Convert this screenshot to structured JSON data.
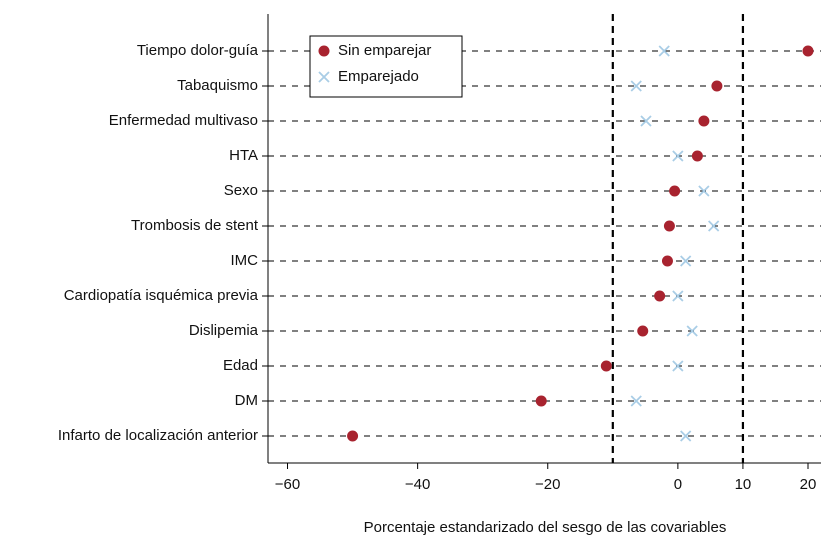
{
  "chart_data": {
    "type": "dot",
    "x_label": "Porcentaje estandarizado del sesgo de las covariables",
    "categories": [
      "Tiempo dolor-guía",
      "Tabaquismo",
      "Enfermedad multivaso",
      "HTA",
      "Sexo",
      "Trombosis de stent",
      "IMC",
      "Cardiopatía isquémica previa",
      "Dislipemia",
      "Edad",
      "DM",
      "Infarto de localización anterior"
    ],
    "series": [
      {
        "name": "Sin emparejar",
        "color": "#a8232f",
        "marker": "circle",
        "values": [
          20,
          6,
          4,
          3,
          -0.5,
          -1.3,
          -1.6,
          -2.8,
          -5.4,
          -11,
          -21,
          -50
        ]
      },
      {
        "name": "Emparejado",
        "color": "#a9cde6",
        "marker": "x",
        "values": [
          -2.1,
          -6.4,
          -4.9,
          0,
          4,
          5.5,
          1.2,
          0,
          2.2,
          0,
          -6.4,
          1.2
        ]
      }
    ],
    "xlim": [
      -63,
      22
    ],
    "xticks": [
      {
        "value": -60,
        "label": "−60"
      },
      {
        "value": -40,
        "label": "−40"
      },
      {
        "value": -20,
        "label": "−20"
      },
      0,
      10,
      20
    ],
    "reference_lines": [
      -10,
      10
    ],
    "legend": "top-left"
  }
}
